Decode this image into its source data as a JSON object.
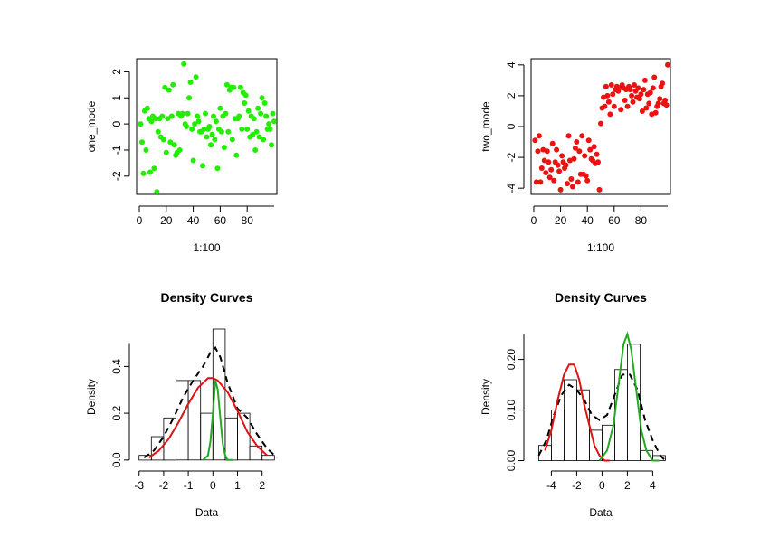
{
  "chart_data": [
    {
      "type": "scatter",
      "title": "",
      "xlabel": "1:100",
      "ylabel": "one_mode",
      "xlim": [
        -2,
        102
      ],
      "ylim": [
        -2.7,
        2.5
      ],
      "xticks": [
        "0",
        "20",
        "40",
        "60",
        "80"
      ],
      "yticks": [
        "-2",
        "-1",
        "0",
        "1",
        "2"
      ],
      "point_color": "#22ee00",
      "series": [
        {
          "x": [
            1,
            2,
            3,
            4,
            5,
            6,
            7,
            8,
            9,
            10,
            11,
            12,
            13,
            14,
            15,
            16,
            17,
            18,
            19,
            20,
            21,
            22,
            23,
            24,
            25,
            26,
            27,
            28,
            29,
            30,
            31,
            32,
            33,
            34,
            35,
            36,
            37,
            38,
            39,
            40,
            41,
            42,
            43,
            44,
            45,
            46,
            47,
            48,
            49,
            50,
            51,
            52,
            53,
            54,
            55,
            56,
            57,
            58,
            59,
            60,
            61,
            62,
            63,
            64,
            65,
            66,
            67,
            68,
            69,
            70,
            71,
            72,
            73,
            74,
            75,
            76,
            77,
            78,
            79,
            80,
            81,
            82,
            83,
            84,
            85,
            86,
            87,
            88,
            89,
            90,
            91,
            92,
            93,
            94,
            95,
            96,
            97,
            98,
            99,
            100
          ],
          "y": [
            0.0,
            -0.7,
            -1.9,
            0.5,
            -1.0,
            0.6,
            0.2,
            -1.85,
            0.1,
            0.3,
            -1.7,
            0.2,
            -2.6,
            -0.3,
            0.2,
            -0.5,
            0.3,
            -0.6,
            1.4,
            -1.1,
            0.2,
            1.3,
            -0.7,
            0.3,
            1.5,
            -0.8,
            -1.2,
            -1.1,
            0.4,
            -1.0,
            0.3,
            0.4,
            2.3,
            0.0,
            -0.1,
            0.4,
            1.0,
            1.6,
            -0.2,
            -1.4,
            0.0,
            1.8,
            0.3,
            0.1,
            -0.3,
            -0.3,
            -1.6,
            -0.2,
            0.4,
            -0.5,
            -0.2,
            -0.1,
            -0.8,
            -0.4,
            0.3,
            -0.6,
            0.1,
            -1.7,
            -0.2,
            0.6,
            -0.3,
            0.3,
            -0.9,
            0.4,
            1.5,
            -0.3,
            1.3,
            1.4,
            -0.6,
            1.4,
            0.2,
            -1.2,
            0.2,
            0.3,
            1.4,
            -0.2,
            1.2,
            0.8,
            1.1,
            -0.2,
            0.5,
            -0.5,
            0.3,
            -0.4,
            0.2,
            -1.0,
            -0.3,
            0.6,
            -0.5,
            0.4,
            1.0,
            -0.6,
            0.8,
            0.3,
            -0.2,
            0.0,
            -0.2,
            -0.8,
            0.4,
            0.1
          ]
        }
      ]
    },
    {
      "type": "scatter",
      "title": "",
      "xlabel": "1:100",
      "ylabel": "two_mode",
      "xlim": [
        -2,
        102
      ],
      "ylim": [
        -4.4,
        4.4
      ],
      "xticks": [
        "0",
        "20",
        "40",
        "60",
        "80"
      ],
      "yticks": [
        "-4",
        "-2",
        "0",
        "2",
        "4"
      ],
      "point_color": "#ee1111",
      "series": [
        {
          "x": [
            1,
            2,
            3,
            4,
            5,
            6,
            7,
            8,
            9,
            10,
            11,
            12,
            13,
            14,
            15,
            16,
            17,
            18,
            19,
            20,
            21,
            22,
            23,
            24,
            25,
            26,
            27,
            28,
            29,
            30,
            31,
            32,
            33,
            34,
            35,
            36,
            37,
            38,
            39,
            40,
            41,
            42,
            43,
            44,
            45,
            46,
            47,
            48,
            49,
            50,
            51,
            52,
            53,
            54,
            55,
            56,
            57,
            58,
            59,
            60,
            61,
            62,
            63,
            64,
            65,
            66,
            67,
            68,
            69,
            70,
            71,
            72,
            73,
            74,
            75,
            76,
            77,
            78,
            79,
            80,
            81,
            82,
            83,
            84,
            85,
            86,
            87,
            88,
            89,
            90,
            91,
            92,
            93,
            94,
            95,
            96,
            97,
            98,
            99,
            100
          ],
          "y": [
            -0.9,
            -3.6,
            -1.6,
            -0.6,
            -3.6,
            -2.7,
            -1.5,
            -2.2,
            -3.0,
            -1.6,
            -2.3,
            -3.3,
            -2.8,
            -1.1,
            -3.5,
            -2.3,
            -1.5,
            -2.5,
            -2.9,
            -4.1,
            -1.9,
            -2.3,
            -2.7,
            -2.5,
            -3.7,
            -0.6,
            -2.2,
            -3.4,
            -3.9,
            -2.1,
            -1.4,
            -1.0,
            -3.6,
            -1.6,
            -3.1,
            -0.6,
            -3.1,
            -1.9,
            -3.2,
            -3.5,
            -0.9,
            -1.5,
            -2.1,
            -2.2,
            -1.3,
            -2.4,
            -1.8,
            -2.3,
            -4.1,
            0.2,
            1.2,
            1.9,
            1.3,
            2.6,
            2.0,
            1.6,
            0.8,
            2.7,
            2.1,
            1.3,
            2.4,
            2.6,
            2.3,
            2.5,
            1.1,
            2.7,
            2.5,
            1.7,
            2.4,
            1.3,
            2.6,
            2.4,
            2.0,
            1.6,
            2.7,
            2.3,
            1.9,
            2.5,
            1.8,
            2.1,
            1.0,
            2.4,
            3.0,
            1.2,
            2.1,
            1.5,
            2.2,
            0.8,
            2.5,
            3.2,
            0.9,
            1.3,
            1.5,
            1.8,
            2.6,
            2.8,
            1.5,
            1.7,
            1.4,
            4.0
          ]
        }
      ]
    },
    {
      "type": "histogram",
      "title": "Density Curves",
      "xlabel": "Data",
      "ylabel": "Density",
      "xlim": [
        -3.1,
        2.6
      ],
      "ylim": [
        -0.02,
        0.56
      ],
      "xticks": [
        "-3",
        "-2",
        "-1",
        "0",
        "1",
        "2"
      ],
      "yticks": [
        "0.0",
        "0.2",
        "0.4"
      ],
      "bins": [
        -3.0,
        -2.5,
        -2.0,
        -1.5,
        -1.0,
        -0.5,
        0.0,
        0.5,
        1.0,
        1.5,
        2.0,
        2.5
      ],
      "counts": [
        0.02,
        0.1,
        0.18,
        0.34,
        0.34,
        0.2,
        0.56,
        0.18,
        0.2,
        0.06,
        0.02
      ],
      "curves": [
        {
          "style": "dashed",
          "color": "#000000",
          "x": [
            -2.8,
            -2.4,
            -2.0,
            -1.6,
            -1.2,
            -0.8,
            -0.4,
            -0.1,
            0.1,
            0.3,
            0.6,
            1.0,
            1.4,
            1.8,
            2.2,
            2.6
          ],
          "y": [
            0.01,
            0.04,
            0.1,
            0.18,
            0.27,
            0.34,
            0.4,
            0.46,
            0.48,
            0.44,
            0.33,
            0.22,
            0.18,
            0.11,
            0.05,
            0.01
          ]
        },
        {
          "style": "solid",
          "color": "#dd1111",
          "x": [
            -2.6,
            -2.2,
            -1.8,
            -1.4,
            -1.0,
            -0.6,
            -0.2,
            0.0,
            0.2,
            0.6,
            1.0,
            1.4,
            1.8,
            2.2
          ],
          "y": [
            0.01,
            0.04,
            0.09,
            0.16,
            0.24,
            0.31,
            0.35,
            0.35,
            0.34,
            0.29,
            0.21,
            0.12,
            0.06,
            0.02
          ]
        },
        {
          "style": "solid",
          "color": "#22aa22",
          "x": [
            -0.4,
            -0.2,
            -0.1,
            0.0,
            0.1,
            0.2,
            0.3,
            0.4,
            0.5,
            0.6,
            0.8
          ],
          "y": [
            0.0,
            0.02,
            0.08,
            0.2,
            0.34,
            0.3,
            0.18,
            0.07,
            0.02,
            0.0,
            0.0
          ]
        }
      ]
    },
    {
      "type": "histogram",
      "title": "Density Curves",
      "xlabel": "Data",
      "ylabel": "Density",
      "xlim": [
        -5.6,
        5.4
      ],
      "ylim": [
        -0.008,
        0.26
      ],
      "xticks": [
        "-4",
        "-2",
        "0",
        "2",
        "4"
      ],
      "yticks": [
        "0.00",
        "0.10",
        "0.20"
      ],
      "bins": [
        -5,
        -4,
        -3,
        -2,
        -1,
        0,
        1,
        2,
        3,
        4,
        5
      ],
      "counts": [
        0.03,
        0.1,
        0.16,
        0.14,
        0.06,
        0.07,
        0.18,
        0.23,
        0.02,
        0.01
      ],
      "curves": [
        {
          "style": "dashed",
          "color": "#000000",
          "x": [
            -5.0,
            -4.4,
            -3.8,
            -3.2,
            -2.6,
            -2.0,
            -1.4,
            -0.8,
            -0.2,
            0.4,
            1.0,
            1.6,
            2.2,
            2.8,
            3.4,
            4.0,
            4.6,
            5.0
          ],
          "y": [
            0.01,
            0.04,
            0.09,
            0.13,
            0.15,
            0.14,
            0.12,
            0.09,
            0.08,
            0.09,
            0.13,
            0.17,
            0.17,
            0.14,
            0.08,
            0.04,
            0.01,
            0.0
          ]
        },
        {
          "style": "solid",
          "color": "#dd1111",
          "x": [
            -4.5,
            -4.0,
            -3.5,
            -3.0,
            -2.6,
            -2.2,
            -1.8,
            -1.4,
            -1.0,
            -0.6,
            -0.2,
            0.2,
            0.6
          ],
          "y": [
            0.02,
            0.06,
            0.12,
            0.17,
            0.19,
            0.19,
            0.16,
            0.11,
            0.07,
            0.03,
            0.01,
            0.0,
            0.0
          ]
        },
        {
          "style": "solid",
          "color": "#22aa22",
          "x": [
            -0.2,
            0.4,
            0.9,
            1.3,
            1.7,
            2.0,
            2.3,
            2.7,
            3.1,
            3.5,
            4.0,
            4.5
          ],
          "y": [
            0.0,
            0.02,
            0.07,
            0.15,
            0.23,
            0.25,
            0.22,
            0.14,
            0.06,
            0.02,
            0.0,
            0.0
          ]
        }
      ]
    }
  ]
}
